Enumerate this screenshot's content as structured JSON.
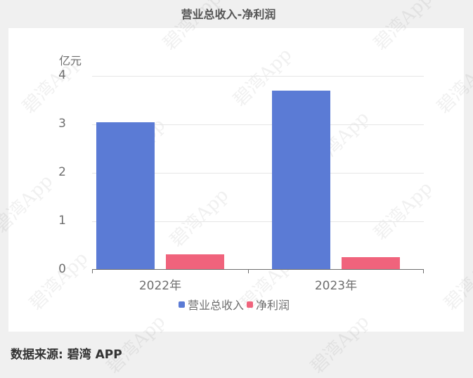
{
  "title": "营业总收入-净利润",
  "unit_label": "亿元",
  "source": "数据来源: 碧湾 APP",
  "watermark": "碧湾App",
  "colors": {
    "revenue": "#5b7bd5",
    "net_profit": "#f0637c",
    "background": "#f0f0f0",
    "card": "#ffffff"
  },
  "y_ticks": [
    "0",
    "1",
    "2",
    "3",
    "4"
  ],
  "x_labels": [
    "2022年",
    "2023年"
  ],
  "legend": [
    {
      "label": "营业总收入",
      "color": "#5b7bd5"
    },
    {
      "label": "净利润",
      "color": "#f0637c"
    }
  ],
  "chart_data": {
    "type": "bar",
    "title": "营业总收入-净利润",
    "categories": [
      "2022年",
      "2023年"
    ],
    "series": [
      {
        "name": "营业总收入",
        "values": [
          3.04,
          3.7
        ]
      },
      {
        "name": "净利润",
        "values": [
          0.32,
          0.26
        ]
      }
    ],
    "xlabel": "",
    "ylabel": "亿元",
    "ylim": [
      0,
      4
    ],
    "grid": true,
    "legend_position": "bottom"
  }
}
